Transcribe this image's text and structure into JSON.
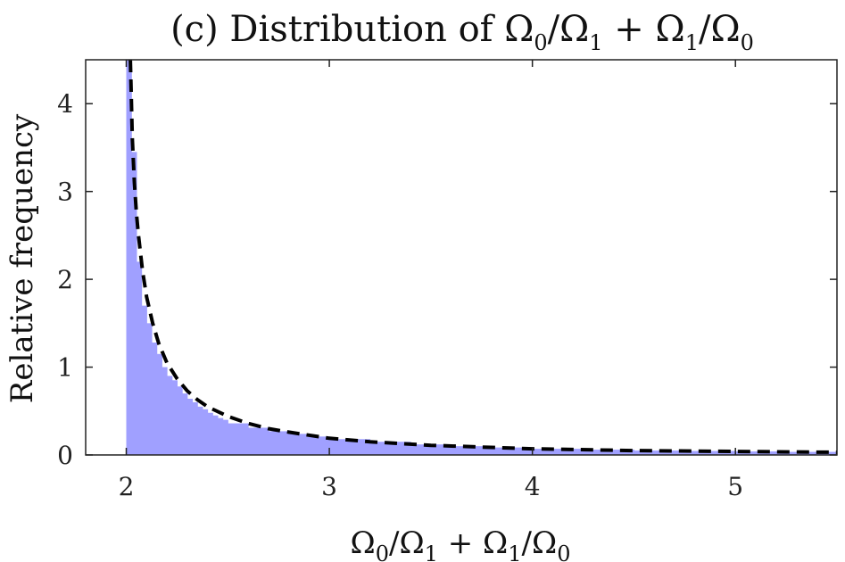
{
  "chart_data": {
    "type": "bar",
    "title": "(c) Distribution of Ω0/Ω1 + Ω1/Ω0",
    "title_parts": {
      "prefix": "(c) Distribution of ",
      "w": "Ω",
      "s0": "0",
      "s1": "1"
    },
    "xlabel": "Ω0/Ω1 + Ω1/Ω0",
    "xlabel_parts": {
      "w": "Ω",
      "s0": "0",
      "s1": "1"
    },
    "ylabel": "Relative frequency",
    "xlim": [
      1.8,
      5.5
    ],
    "ylim": [
      0,
      4.5
    ],
    "xticks": [
      2,
      3,
      4,
      5
    ],
    "yticks": [
      0,
      1,
      2,
      3,
      4
    ],
    "grid": false,
    "bar_color": "#a0a0ff",
    "curve_color": "#000000",
    "histogram": {
      "bin_edges": [
        2.0,
        2.025,
        2.05,
        2.075,
        2.1,
        2.125,
        2.15,
        2.175,
        2.2,
        2.225,
        2.25,
        2.275,
        2.3,
        2.325,
        2.35,
        2.375,
        2.4,
        2.425,
        2.45,
        2.475,
        2.5,
        2.6,
        2.7,
        2.8,
        2.9,
        3.0,
        3.2,
        3.4,
        3.6,
        3.8,
        4.0,
        4.25,
        4.5,
        4.75,
        5.0,
        5.25,
        5.5
      ],
      "values": [
        4.5,
        3.45,
        2.2,
        1.7,
        1.5,
        1.28,
        1.15,
        1.0,
        0.9,
        0.85,
        0.78,
        0.7,
        0.64,
        0.6,
        0.55,
        0.52,
        0.48,
        0.45,
        0.42,
        0.4,
        0.36,
        0.31,
        0.27,
        0.24,
        0.21,
        0.18,
        0.15,
        0.12,
        0.1,
        0.085,
        0.07,
        0.06,
        0.05,
        0.045,
        0.04,
        0.035
      ]
    },
    "fit_curve": {
      "style": "dashed",
      "x": [
        2.02,
        2.03,
        2.04,
        2.05,
        2.06,
        2.08,
        2.1,
        2.13,
        2.16,
        2.2,
        2.25,
        2.3,
        2.35,
        2.4,
        2.5,
        2.6,
        2.7,
        2.8,
        3.0,
        3.2,
        3.5,
        4.0,
        4.5,
        5.0,
        5.5
      ],
      "y": [
        4.5,
        3.6,
        3.1,
        2.75,
        2.5,
        2.1,
        1.8,
        1.5,
        1.27,
        1.05,
        0.87,
        0.73,
        0.63,
        0.55,
        0.44,
        0.36,
        0.3,
        0.26,
        0.19,
        0.15,
        0.11,
        0.07,
        0.05,
        0.04,
        0.03
      ]
    }
  }
}
